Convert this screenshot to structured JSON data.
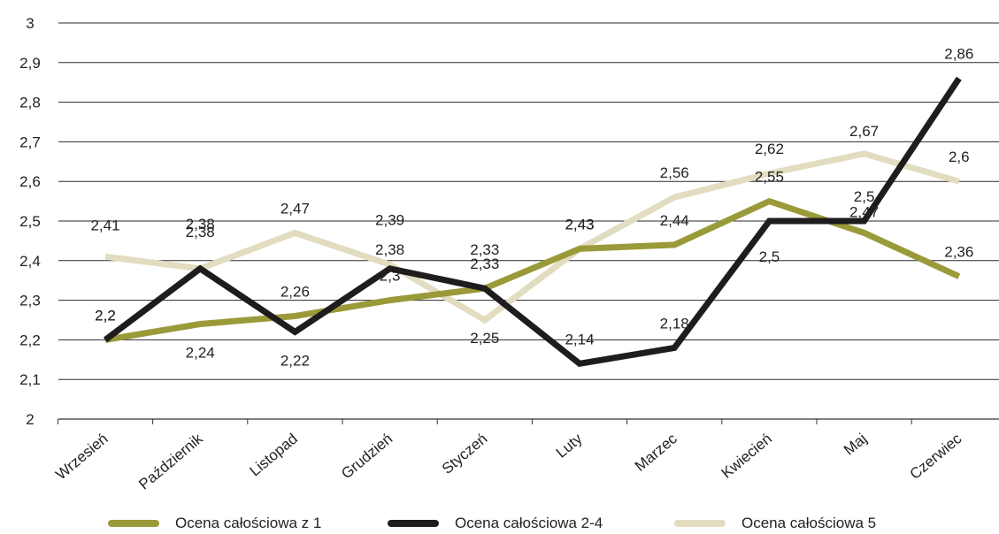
{
  "chart_data": {
    "type": "line",
    "title": "",
    "xlabel": "",
    "ylabel": "",
    "ylim": [
      2,
      3
    ],
    "yticks": [
      "2",
      "2,1",
      "2,2",
      "2,3",
      "2,4",
      "2,5",
      "2,6",
      "2,7",
      "2,8",
      "2,9",
      "3"
    ],
    "grid": true,
    "legend_position": "bottom",
    "categories": [
      "Wrzesień",
      "Październik",
      "Listopad",
      "Grudzień",
      "Styczeń",
      "Luty",
      "Marzec",
      "Kwiecień",
      "Maj",
      "Czerwiec"
    ],
    "series": [
      {
        "name": "Ocena całościowa z 1",
        "color": "#9a9a3a",
        "values": [
          2.2,
          2.24,
          2.26,
          2.3,
          2.33,
          2.43,
          2.44,
          2.55,
          2.47,
          2.36
        ],
        "labels": [
          "2,2",
          "2,24",
          "2,26",
          "2,3",
          "2,33",
          "2,43",
          "2,44",
          "2,55",
          "2,47",
          "2,36"
        ]
      },
      {
        "name": "Ocena całościowa 2-4",
        "color": "#1e1c1d",
        "values": [
          2.2,
          2.38,
          2.22,
          2.38,
          2.33,
          2.14,
          2.18,
          2.5,
          2.5,
          2.86
        ],
        "labels": [
          "2,2",
          "2,38",
          "2,22",
          "2,38",
          "2,33",
          "2,14",
          "2,18",
          "2,5",
          "2,5",
          "2,86"
        ]
      },
      {
        "name": "Ocena całościowa 5",
        "color": "#e2dcc0",
        "values": [
          2.41,
          2.38,
          2.47,
          2.39,
          2.25,
          2.43,
          2.56,
          2.62,
          2.67,
          2.6
        ],
        "labels": [
          "2,41",
          "2,38",
          "2,47",
          "2,39",
          "2,25",
          "2,43",
          "2,56",
          "2,62",
          "2,67",
          "2,6"
        ]
      }
    ]
  }
}
